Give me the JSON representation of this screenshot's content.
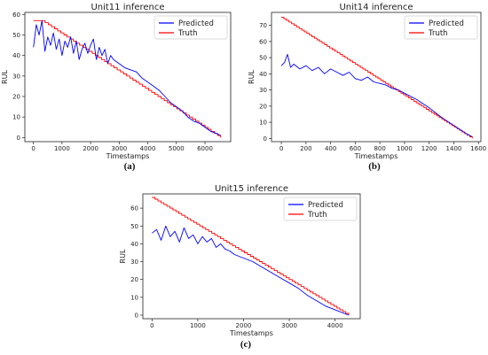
{
  "chart_data": [
    {
      "type": "line",
      "title": "Unit11 inference",
      "xlabel": "Timestamps",
      "ylabel": "RUL",
      "caption": "(a)",
      "xlim": [
        -300,
        6900
      ],
      "ylim": [
        -2,
        61
      ],
      "xticks": [
        0,
        1000,
        2000,
        3000,
        4000,
        5000,
        6000
      ],
      "yticks": [
        0,
        10,
        20,
        30,
        40,
        50,
        60
      ],
      "legend": {
        "placement": "top-right",
        "entries": [
          "Predicted",
          "Truth"
        ]
      },
      "series": [
        {
          "name": "Predicted",
          "color": "#0000ff",
          "x": [
            0,
            100,
            200,
            300,
            400,
            500,
            600,
            700,
            800,
            900,
            1000,
            1100,
            1200,
            1300,
            1400,
            1500,
            1600,
            1700,
            1800,
            1900,
            2000,
            2100,
            2200,
            2300,
            2400,
            2500,
            2600,
            2700,
            2800,
            2900,
            3000,
            3200,
            3400,
            3600,
            3800,
            4000,
            4200,
            4400,
            4600,
            4800,
            5000,
            5200,
            5400,
            5600,
            5800,
            6000,
            6200,
            6400,
            6550
          ],
          "y": [
            44,
            55,
            50,
            57,
            42,
            49,
            45,
            51,
            43,
            48,
            40,
            47,
            44,
            49,
            41,
            47,
            38,
            43,
            46,
            41,
            45,
            48,
            38,
            44,
            40,
            43,
            36,
            40,
            38,
            37,
            36,
            34,
            33,
            32,
            29,
            27,
            25,
            23,
            20,
            17,
            15,
            13,
            10,
            8,
            7,
            5,
            3,
            2,
            1
          ]
        },
        {
          "name": "Truth",
          "color": "#ff0000",
          "x": [
            0,
            300,
            6550
          ],
          "y": [
            57,
            57,
            0
          ]
        }
      ]
    },
    {
      "type": "line",
      "title": "Unit14 inference",
      "xlabel": "Timestamps",
      "ylabel": "RUL",
      "caption": "(b)",
      "xlim": [
        -80,
        1620
      ],
      "ylim": [
        -2,
        78
      ],
      "xticks": [
        0,
        200,
        400,
        600,
        800,
        1000,
        1200,
        1400,
        1600
      ],
      "yticks": [
        0,
        10,
        20,
        30,
        40,
        50,
        60,
        70
      ],
      "legend": {
        "placement": "top-right",
        "entries": [
          "Predicted",
          "Truth"
        ]
      },
      "series": [
        {
          "name": "Predicted",
          "color": "#0000ff",
          "x": [
            0,
            25,
            50,
            75,
            100,
            150,
            200,
            250,
            300,
            350,
            400,
            450,
            500,
            550,
            600,
            650,
            700,
            750,
            800,
            850,
            900,
            950,
            1000,
            1100,
            1200,
            1300,
            1400,
            1500,
            1550
          ],
          "y": [
            45,
            47,
            52,
            44,
            46,
            43,
            45,
            42,
            44,
            40,
            43,
            41,
            39,
            41,
            37,
            36,
            38,
            35,
            34,
            33,
            31,
            30,
            28,
            24,
            19,
            13,
            8,
            3,
            1
          ]
        },
        {
          "name": "Truth",
          "color": "#ff0000",
          "x": [
            0,
            1550
          ],
          "y": [
            75,
            0
          ]
        }
      ]
    },
    {
      "type": "line",
      "title": "Unit15 inference",
      "xlabel": "Timestamps",
      "ylabel": "RUL",
      "caption": "(c)",
      "xlim": [
        -200,
        4550
      ],
      "ylim": [
        -2,
        68
      ],
      "xticks": [
        0,
        1000,
        2000,
        3000,
        4000
      ],
      "yticks": [
        0,
        10,
        20,
        30,
        40,
        50,
        60
      ],
      "legend": {
        "placement": "top-right",
        "entries": [
          "Predicted",
          "Truth"
        ]
      },
      "series": [
        {
          "name": "Predicted",
          "color": "#0000ff",
          "x": [
            0,
            100,
            200,
            300,
            400,
            500,
            600,
            700,
            800,
            900,
            1000,
            1100,
            1200,
            1300,
            1400,
            1500,
            1600,
            1700,
            1800,
            2000,
            2200,
            2400,
            2600,
            2800,
            3000,
            3200,
            3400,
            3600,
            3800,
            4000,
            4200,
            4300
          ],
          "y": [
            46,
            48,
            42,
            50,
            44,
            47,
            41,
            49,
            43,
            45,
            40,
            44,
            41,
            43,
            38,
            40,
            37,
            36,
            34,
            32,
            30,
            27,
            24,
            21,
            18,
            15,
            11,
            8,
            5,
            3,
            1,
            0
          ]
        },
        {
          "name": "Truth",
          "color": "#ff0000",
          "x": [
            0,
            4300
          ],
          "y": [
            66,
            0
          ]
        }
      ]
    }
  ]
}
